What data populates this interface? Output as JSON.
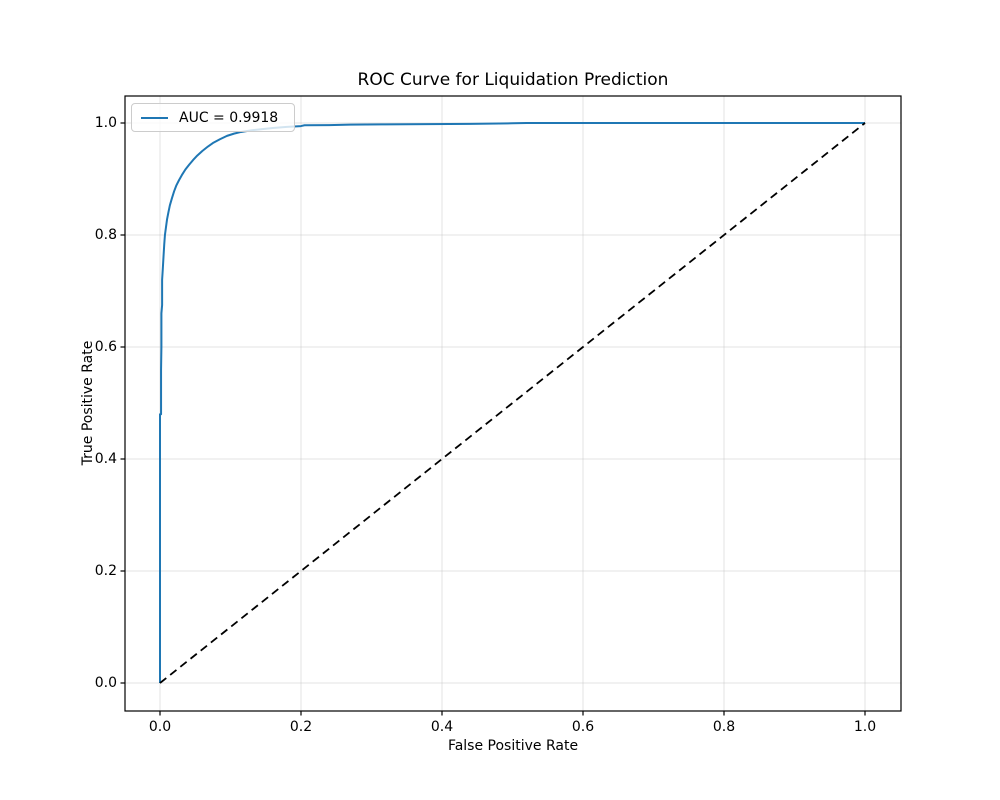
{
  "figure": {
    "background": "#ffffff"
  },
  "chart_data": {
    "type": "line",
    "title": "ROC Curve for Liquidation Prediction",
    "xlabel": "False Positive Rate",
    "ylabel": "True Positive Rate",
    "xlim": [
      -0.05,
      1.05
    ],
    "ylim": [
      -0.05,
      1.05
    ],
    "grid": true,
    "grid_color": "#b0b0b0",
    "spine_color": "#000000",
    "xticks": [
      0.0,
      0.2,
      0.4,
      0.6,
      0.8,
      1.0
    ],
    "xtick_labels": [
      "0.0",
      "0.2",
      "0.4",
      "0.6",
      "0.8",
      "1.0"
    ],
    "yticks": [
      0.0,
      0.2,
      0.4,
      0.6,
      0.8,
      1.0
    ],
    "ytick_labels": [
      "0.0",
      "0.2",
      "0.4",
      "0.6",
      "0.8",
      "1.0"
    ],
    "auc": 0.9918,
    "legend": {
      "position": "upper left",
      "entries": [
        {
          "label": "AUC = 0.9918",
          "color": "#1f77b4",
          "style": "solid"
        }
      ]
    },
    "series": [
      {
        "name": "roc-curve",
        "color": "#1f77b4",
        "style": "solid",
        "width": 2,
        "points": [
          [
            0.0,
            0.0
          ],
          [
            0.0,
            0.3
          ],
          [
            0.0,
            0.48
          ],
          [
            0.0015,
            0.48
          ],
          [
            0.0015,
            0.56
          ],
          [
            0.002,
            0.6
          ],
          [
            0.002,
            0.66
          ],
          [
            0.003,
            0.675
          ],
          [
            0.003,
            0.72
          ],
          [
            0.004,
            0.74
          ],
          [
            0.005,
            0.762
          ],
          [
            0.006,
            0.783
          ],
          [
            0.007,
            0.8
          ],
          [
            0.0085,
            0.814
          ],
          [
            0.01,
            0.828
          ],
          [
            0.012,
            0.841
          ],
          [
            0.014,
            0.853
          ],
          [
            0.017,
            0.866
          ],
          [
            0.02,
            0.878
          ],
          [
            0.023,
            0.888
          ],
          [
            0.027,
            0.898
          ],
          [
            0.031,
            0.907
          ],
          [
            0.036,
            0.917
          ],
          [
            0.041,
            0.925
          ],
          [
            0.047,
            0.934
          ],
          [
            0.053,
            0.942
          ],
          [
            0.06,
            0.95
          ],
          [
            0.068,
            0.958
          ],
          [
            0.076,
            0.965
          ],
          [
            0.085,
            0.971
          ],
          [
            0.095,
            0.977
          ],
          [
            0.105,
            0.981
          ],
          [
            0.115,
            0.984
          ],
          [
            0.13,
            0.987
          ],
          [
            0.145,
            0.989
          ],
          [
            0.16,
            0.991
          ],
          [
            0.18,
            0.993
          ],
          [
            0.2,
            0.9945
          ],
          [
            0.205,
            0.996
          ],
          [
            0.24,
            0.9962
          ],
          [
            0.27,
            0.997
          ],
          [
            0.32,
            0.9975
          ],
          [
            0.38,
            0.998
          ],
          [
            0.44,
            0.9985
          ],
          [
            0.5,
            0.9995
          ],
          [
            0.52,
            1.0
          ],
          [
            1.0,
            1.0
          ]
        ]
      },
      {
        "name": "chance-diagonal",
        "color": "#000000",
        "style": "dashed",
        "width": 1.8,
        "points": [
          [
            0.0,
            0.0
          ],
          [
            1.0,
            1.0
          ]
        ]
      }
    ]
  }
}
